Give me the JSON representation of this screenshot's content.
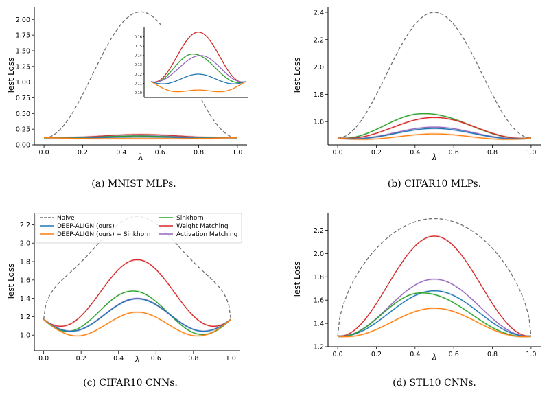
{
  "colors": {
    "naive": "#6e6e6e",
    "deep_align": "#1f77b4",
    "deep_align_sinkhorn": "#ff7f0e",
    "sinkhorn": "#2ca02c",
    "weight_matching": "#d62728",
    "activation_matching": "#9467bd"
  },
  "legend": {
    "entries": [
      {
        "key": "naive",
        "label": "Naive",
        "style": "dashed"
      },
      {
        "key": "deep_align",
        "label": "DEEP-ALIGN (ours)",
        "style": "solid"
      },
      {
        "key": "deep_align_sinkhorn",
        "label": "DEEP-ALIGN (ours) + Sinkhorn",
        "style": "solid"
      },
      {
        "key": "sinkhorn",
        "label": "Sinkhorn",
        "style": "solid"
      },
      {
        "key": "weight_matching",
        "label": "Weight Matching",
        "style": "solid"
      },
      {
        "key": "activation_matching",
        "label": "Activation Matching",
        "style": "solid"
      }
    ]
  },
  "chart_data": [
    {
      "type": "line",
      "caption": "(a) MNIST MLPs.",
      "xlabel": "λ",
      "ylabel": "Test Loss",
      "xlim": [
        -0.05,
        1.05
      ],
      "ylim": [
        0.0,
        2.2
      ],
      "xticks": [
        0.0,
        0.2,
        0.4,
        0.6,
        0.8,
        1.0
      ],
      "xtick_labels": [
        "0.0",
        "0.2",
        "0.4",
        "0.6",
        "0.8",
        "1.0"
      ],
      "yticks": [
        0.0,
        0.25,
        0.5,
        0.75,
        1.0,
        1.25,
        1.5,
        1.75,
        2.0
      ],
      "ytick_labels": [
        "0.00",
        "0.25",
        "0.50",
        "0.75",
        "1.00",
        "1.25",
        "1.50",
        "1.75",
        "2.00"
      ],
      "series": [
        {
          "key": "naive",
          "end": 0.11,
          "peak": 2.12,
          "peak_x": 0.5,
          "dip": 0.0
        },
        {
          "key": "weight_matching",
          "end": 0.115,
          "peak": 0.165,
          "peak_x": 0.5,
          "dip": 0.01
        },
        {
          "key": "activation_matching",
          "end": 0.115,
          "peak": 0.145,
          "peak_x": 0.5,
          "dip": 0.01
        },
        {
          "key": "sinkhorn",
          "end": 0.115,
          "peak": 0.14,
          "peak_x": 0.45,
          "dip": 0.01
        },
        {
          "key": "deep_align",
          "end": 0.115,
          "peak": 0.125,
          "peak_x": 0.5,
          "dip": 0.01
        },
        {
          "key": "deep_align_sinkhorn",
          "end": 0.115,
          "peak": 0.1,
          "peak_x": 0.5,
          "dip": 0.01
        }
      ],
      "inset": {
        "xlim": [
          0.0,
          1.0
        ],
        "ylim": [
          0.095,
          0.17
        ],
        "yticks": [
          0.1,
          0.11,
          0.12,
          0.13,
          0.14,
          0.15,
          0.16
        ],
        "ytick_labels": [
          "0.10",
          "0.11",
          "0.12",
          "0.13",
          "0.14",
          "0.15",
          "0.16"
        ],
        "series": [
          {
            "key": "weight_matching",
            "end": 0.112,
            "peak": 0.165,
            "peak_x": 0.5,
            "dip": 0.005
          },
          {
            "key": "sinkhorn",
            "end": 0.112,
            "peak": 0.142,
            "peak_x": 0.42,
            "dip": 0.005
          },
          {
            "key": "activation_matching",
            "end": 0.112,
            "peak": 0.14,
            "peak_x": 0.53,
            "dip": 0.003
          },
          {
            "key": "deep_align",
            "end": 0.112,
            "peak": 0.12,
            "peak_x": 0.5,
            "dip": 0.005
          },
          {
            "key": "deep_align_sinkhorn",
            "end": 0.112,
            "peak": 0.103,
            "peak_x": 0.5,
            "dip": 0.008
          }
        ]
      }
    },
    {
      "type": "line",
      "caption": "(b) CIFAR10 MLPs.",
      "xlabel": "λ",
      "ylabel": "Test Loss",
      "xlim": [
        -0.05,
        1.05
      ],
      "ylim": [
        1.43,
        2.44
      ],
      "xticks": [
        0.0,
        0.2,
        0.4,
        0.6,
        0.8,
        1.0
      ],
      "xtick_labels": [
        "0.0",
        "0.2",
        "0.4",
        "0.6",
        "0.8",
        "1.0"
      ],
      "yticks": [
        1.6,
        1.8,
        2.0,
        2.2,
        2.4
      ],
      "ytick_labels": [
        "1.6",
        "1.8",
        "2.0",
        "2.2",
        "2.4"
      ],
      "series": [
        {
          "key": "naive",
          "end": 1.48,
          "peak": 2.4,
          "peak_x": 0.5,
          "dip": 0.0
        },
        {
          "key": "sinkhorn",
          "end": 1.48,
          "peak": 1.66,
          "peak_x": 0.43,
          "dip": 0.02
        },
        {
          "key": "weight_matching",
          "end": 1.48,
          "peak": 1.63,
          "peak_x": 0.5,
          "dip": 0.02
        },
        {
          "key": "activation_matching",
          "end": 1.48,
          "peak": 1.56,
          "peak_x": 0.5,
          "dip": 0.02
        },
        {
          "key": "deep_align",
          "end": 1.48,
          "peak": 1.55,
          "peak_x": 0.5,
          "dip": 0.02
        },
        {
          "key": "deep_align_sinkhorn",
          "end": 1.48,
          "peak": 1.51,
          "peak_x": 0.5,
          "dip": 0.02
        }
      ]
    },
    {
      "type": "line",
      "caption": "(c) CIFAR10 CNNs.",
      "xlabel": "λ",
      "ylabel": "Test Loss",
      "xlim": [
        -0.05,
        1.05
      ],
      "ylim": [
        0.83,
        2.33
      ],
      "xticks": [
        0.0,
        0.2,
        0.4,
        0.6,
        0.8,
        1.0
      ],
      "xtick_labels": [
        "0.0",
        "0.2",
        "0.4",
        "0.6",
        "0.8",
        "1.0"
      ],
      "yticks": [
        1.0,
        1.2,
        1.4,
        1.6,
        1.8,
        2.0,
        2.2
      ],
      "ytick_labels": [
        "1.0",
        "1.2",
        "1.4",
        "1.6",
        "1.8",
        "2.0",
        "2.2"
      ],
      "legend": true,
      "series": [
        {
          "key": "naive",
          "end": 1.17,
          "peak": 2.29,
          "peak_x": 0.5,
          "dip": 0.25,
          "plateau": true
        },
        {
          "key": "weight_matching",
          "end": 1.17,
          "peak": 1.82,
          "peak_x": 0.5,
          "dip": 0.22
        },
        {
          "key": "sinkhorn",
          "end": 1.17,
          "peak": 1.49,
          "peak_x": 0.42,
          "dip": 0.27
        },
        {
          "key": "activation_matching",
          "end": 1.17,
          "peak": 1.4,
          "peak_x": 0.5,
          "dip": 0.22
        },
        {
          "key": "deep_align",
          "end": 1.17,
          "peak": 1.395,
          "peak_x": 0.5,
          "dip": 0.22
        },
        {
          "key": "deep_align_sinkhorn",
          "end": 1.17,
          "peak": 1.25,
          "peak_x": 0.5,
          "dip": 0.24
        }
      ]
    },
    {
      "type": "line",
      "caption": "(d) STL10 CNNs.",
      "xlabel": "λ",
      "ylabel": "Test Loss",
      "xlim": [
        -0.05,
        1.05
      ],
      "ylim": [
        1.2,
        2.35
      ],
      "xticks": [
        0.0,
        0.2,
        0.4,
        0.6,
        0.8,
        1.0
      ],
      "xtick_labels": [
        "0.0",
        "0.2",
        "0.4",
        "0.6",
        "0.8",
        "1.0"
      ],
      "yticks": [
        1.2,
        1.4,
        1.6,
        1.8,
        2.0,
        2.2
      ],
      "ytick_labels": [
        "1.2",
        "1.4",
        "1.6",
        "1.8",
        "2.0",
        "2.2"
      ],
      "series": [
        {
          "key": "naive",
          "end": 1.29,
          "peak": 2.3,
          "peak_x": 0.5,
          "dip": 0.0,
          "plateau": true
        },
        {
          "key": "weight_matching",
          "end": 1.29,
          "peak": 2.15,
          "peak_x": 0.5,
          "dip": 0.02
        },
        {
          "key": "activation_matching",
          "end": 1.29,
          "peak": 1.78,
          "peak_x": 0.5,
          "dip": 0.02
        },
        {
          "key": "deep_align",
          "end": 1.29,
          "peak": 1.68,
          "peak_x": 0.5,
          "dip": 0.02
        },
        {
          "key": "sinkhorn",
          "end": 1.29,
          "peak": 1.665,
          "peak_x": 0.42,
          "dip": 0.03
        },
        {
          "key": "deep_align_sinkhorn",
          "end": 1.29,
          "peak": 1.53,
          "peak_x": 0.5,
          "dip": 0.03
        }
      ]
    }
  ]
}
